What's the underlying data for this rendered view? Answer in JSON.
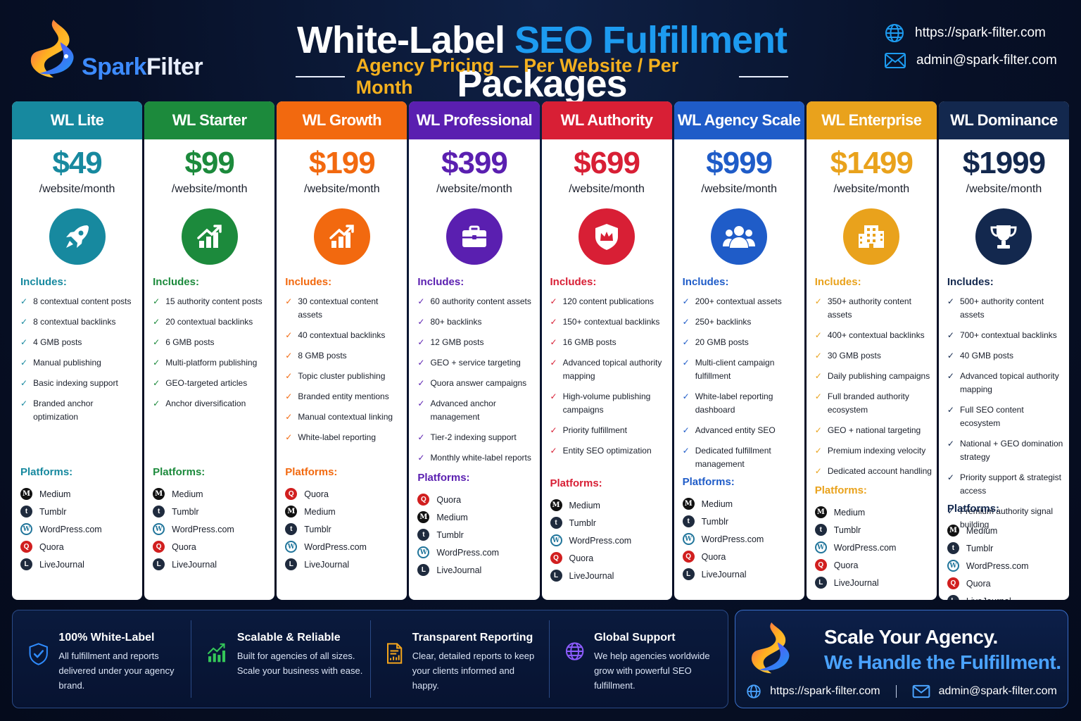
{
  "brand": {
    "name_a": "Spark",
    "name_b": "Filter"
  },
  "header": {
    "title_part1": "White-Label ",
    "title_highlight": "SEO Fulfillment",
    "title_part2": " Packages",
    "subtitle": "Agency Pricing — Per Website / Per Month",
    "website": "https://spark-filter.com",
    "email": "admin@spark-filter.com"
  },
  "labels": {
    "includes": "Includes:",
    "platforms": "Platforms:"
  },
  "plans": [
    {
      "name": "WL Lite",
      "color": "#17899f",
      "price": "$49",
      "per": "/website/month",
      "icon": "rocket-icon",
      "features": [
        "8 contextual content posts",
        "8 contextual backlinks",
        "4 GMB posts",
        "Manual publishing",
        "Basic indexing support",
        "Branded anchor optimization"
      ],
      "platforms": [
        "Medium",
        "Tumblr",
        "WordPress.com",
        "Quora",
        "LiveJournal"
      ]
    },
    {
      "name": "WL Starter",
      "color": "#1c8a3c",
      "price": "$99",
      "per": "/website/month",
      "icon": "growth-chart-icon",
      "features": [
        "15 authority content posts",
        "20 contextual backlinks",
        "6 GMB posts",
        "Multi-platform publishing",
        "GEO-targeted articles",
        "Anchor diversification"
      ],
      "platforms": [
        "Medium",
        "Tumblr",
        "WordPress.com",
        "Quora",
        "LiveJournal"
      ]
    },
    {
      "name": "WL Growth",
      "color": "#f2690f",
      "price": "$199",
      "per": "/website/month",
      "icon": "growth-chart-icon",
      "features": [
        "30 contextual content assets",
        "40 contextual backlinks",
        "8 GMB posts",
        "Topic cluster publishing",
        "Branded entity mentions",
        "Manual contextual linking",
        "White-label reporting"
      ],
      "platforms": [
        "Quora",
        "Medium",
        "Tumblr",
        "WordPress.com",
        "LiveJournal"
      ]
    },
    {
      "name": "WL Professional",
      "color": "#5a1fb0",
      "price": "$399",
      "per": "/website/month",
      "icon": "briefcase-icon",
      "features": [
        "60 authority content assets",
        "80+ backlinks",
        "12 GMB posts",
        "GEO + service targeting",
        "Quora answer campaigns",
        "Advanced anchor management",
        "Tier-2 indexing support",
        "Monthly white-label reports"
      ],
      "platforms": [
        "Quora",
        "Medium",
        "Tumblr",
        "WordPress.com",
        "LiveJournal"
      ]
    },
    {
      "name": "WL Authority",
      "color": "#d81f35",
      "price": "$699",
      "per": "/website/month",
      "icon": "crown-shield-icon",
      "features": [
        "120 content publications",
        "150+ contextual backlinks",
        "16 GMB posts",
        "Advanced topical authority mapping",
        "High-volume publishing campaigns",
        "Priority fulfillment",
        "Entity SEO optimization"
      ],
      "platforms": [
        "Medium",
        "Tumblr",
        "WordPress.com",
        "Quora",
        "LiveJournal"
      ]
    },
    {
      "name": "WL Agency Scale",
      "color": "#1f5cc8",
      "price": "$999",
      "per": "/website/month",
      "icon": "team-icon",
      "features": [
        "200+ contextual assets",
        "250+ backlinks",
        "20 GMB posts",
        "Multi-client campaign fulfillment",
        "White-label reporting dashboard",
        "Advanced entity SEO",
        "Dedicated fulfillment management"
      ],
      "platforms": [
        "Medium",
        "Tumblr",
        "WordPress.com",
        "Quora",
        "LiveJournal"
      ]
    },
    {
      "name": "WL Enterprise",
      "color": "#e9a21c",
      "price": "$1499",
      "per": "/website/month",
      "icon": "building-icon",
      "features": [
        "350+ authority content assets",
        "400+ contextual backlinks",
        "30 GMB posts",
        "Daily publishing campaigns",
        "Full branded authority ecosystem",
        "GEO + national targeting",
        "Premium indexing velocity",
        "Dedicated account handling"
      ],
      "platforms": [
        "Medium",
        "Tumblr",
        "WordPress.com",
        "Quora",
        "LiveJournal"
      ]
    },
    {
      "name": "WL Dominance",
      "color": "#13284e",
      "price": "$1999",
      "per": "/website/month",
      "icon": "trophy-icon",
      "features": [
        "500+ authority content assets",
        "700+ contextual backlinks",
        "40 GMB posts",
        "Advanced topical authority mapping",
        "Full SEO content ecosystem",
        "National + GEO domination strategy",
        "Priority support & strategist access",
        "Premium authority signal building"
      ],
      "platforms": [
        "Medium",
        "Tumblr",
        "WordPress.com",
        "Quora",
        "LiveJournal"
      ]
    }
  ],
  "footer": {
    "features": [
      {
        "title": "100% White-Label",
        "text": "All fulfillment and reports delivered under your agency brand.",
        "icon": "shield-check-icon"
      },
      {
        "title": "Scalable & Reliable",
        "text": "Built for agencies of all sizes. Scale your business with ease.",
        "icon": "bar-chart-arrow-icon"
      },
      {
        "title": "Transparent Reporting",
        "text": "Clear, detailed reports to keep your clients informed and happy.",
        "icon": "report-document-icon"
      },
      {
        "title": "Global Support",
        "text": "We help agencies worldwide grow with powerful SEO fulfillment.",
        "icon": "globe-icon"
      }
    ],
    "cta_line1": "Scale Your Agency.",
    "cta_line2": "We Handle the Fulfillment.",
    "website": "https://spark-filter.com",
    "email": "admin@spark-filter.com"
  }
}
